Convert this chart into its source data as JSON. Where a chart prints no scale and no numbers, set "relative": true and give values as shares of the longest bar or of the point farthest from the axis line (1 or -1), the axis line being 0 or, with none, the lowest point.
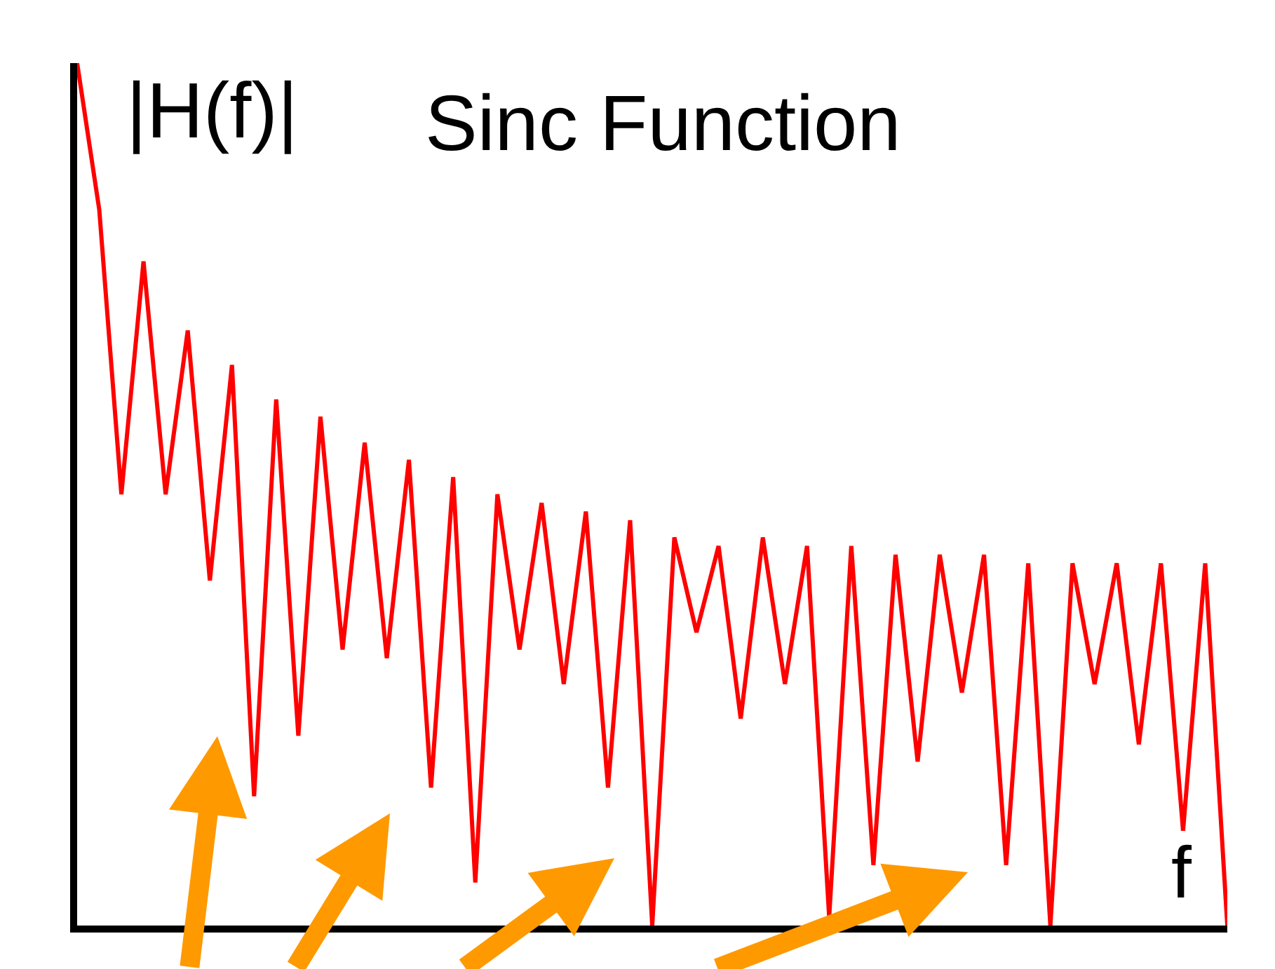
{
  "chart_data": {
    "type": "line",
    "title": "Sinc Function",
    "ylabel": "|H(f)|",
    "xlabel": "f",
    "relative": true,
    "legend": false,
    "marker": "none",
    "line_style": "solid",
    "categories": [
      null,
      null,
      null,
      null,
      null,
      null,
      null,
      null,
      null,
      null,
      null,
      null,
      null,
      null,
      null,
      null,
      null,
      null,
      null,
      null,
      null,
      null,
      null,
      null,
      null,
      null,
      null,
      null,
      null,
      null,
      null,
      null,
      null,
      null,
      null,
      null,
      null,
      null,
      null,
      null,
      null,
      null,
      null,
      null,
      null,
      null,
      null,
      null,
      null,
      null,
      null,
      null,
      null
    ],
    "series": [
      {
        "color": "#ff0000",
        "values": [
          1,
          0.83,
          0.5,
          0.77,
          0.5,
          0.69,
          0.4,
          0.65,
          0.15,
          0.61,
          0.22,
          0.59,
          0.32,
          0.56,
          0.31,
          0.54,
          0.16,
          0.52,
          0.05,
          0.5,
          0.32,
          0.49,
          0.28,
          0.48,
          0.16,
          0.47,
          0.0,
          0.45,
          0.34,
          0.44,
          0.24,
          0.45,
          0.28,
          0.44,
          0.01,
          0.44,
          0.07,
          0.43,
          0.19,
          0.43,
          0.27,
          0.43,
          0.07,
          0.42,
          0.0,
          0.42,
          0.28,
          0.42,
          0.21,
          0.42,
          0.11,
          0.42,
          0.0
        ]
      }
    ]
  }
}
